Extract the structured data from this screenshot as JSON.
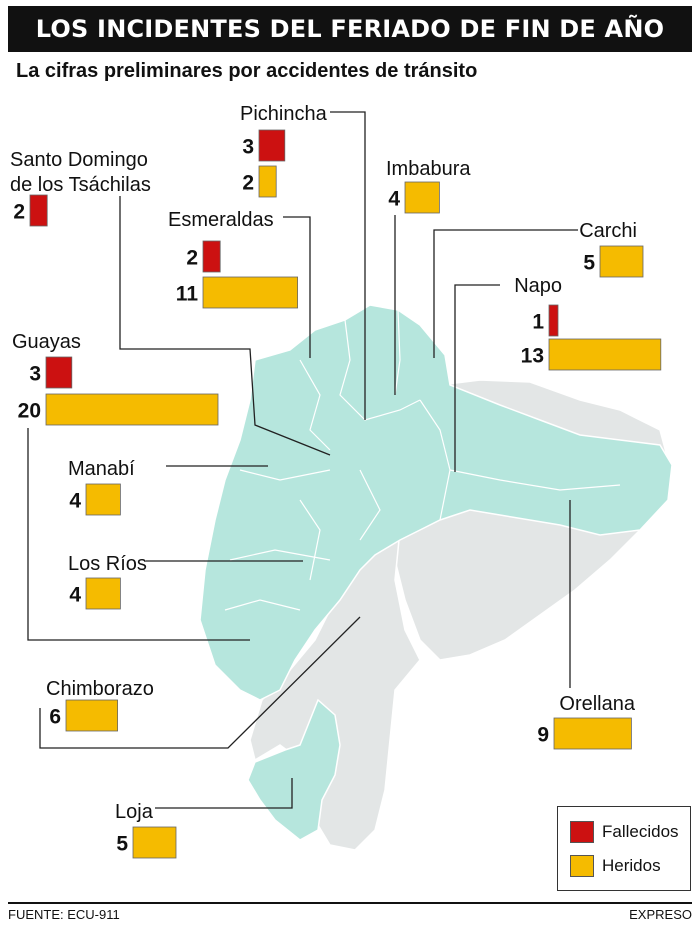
{
  "title": "LOS INCIDENTES DEL FERIADO DE FIN DE AÑO",
  "subtitle": "La cifras preliminares por accidentes de tránsito",
  "source": "FUENTE: ECU-911",
  "credit": "EXPRESO",
  "colors": {
    "fallecidos": "#cc1111",
    "heridos": "#f5bb00",
    "map_highlight": "#b6e6dd",
    "map_other": "#e3e6e6",
    "map_border": "#ffffff"
  },
  "legend": [
    {
      "label": "Fallecidos",
      "color": "#cc1111"
    },
    {
      "label": "Heridos",
      "color": "#f5bb00"
    }
  ],
  "chart_data": {
    "type": "bar",
    "title": "LOS INCIDENTES DEL FERIADO DE FIN DE AÑO",
    "subtitle": "La cifras preliminares por accidentes de tránsito",
    "series_names": [
      "Fallecidos",
      "Heridos"
    ],
    "provinces": [
      {
        "name": "Pichincha",
        "fallecidos": 3,
        "heridos": 2
      },
      {
        "name": "Santo Domingo de los Tsáchilas",
        "name_lines": [
          "Santo Domingo",
          "de los Tsáchilas"
        ],
        "fallecidos": 2,
        "heridos": null
      },
      {
        "name": "Imbabura",
        "fallecidos": null,
        "heridos": 4
      },
      {
        "name": "Esmeraldas",
        "fallecidos": 2,
        "heridos": 11
      },
      {
        "name": "Carchi",
        "fallecidos": null,
        "heridos": 5
      },
      {
        "name": "Napo",
        "fallecidos": 1,
        "heridos": 13
      },
      {
        "name": "Guayas",
        "fallecidos": 3,
        "heridos": 20
      },
      {
        "name": "Manabí",
        "fallecidos": null,
        "heridos": 4
      },
      {
        "name": "Los Ríos",
        "fallecidos": null,
        "heridos": 4
      },
      {
        "name": "Chimborazo",
        "fallecidos": null,
        "heridos": 6
      },
      {
        "name": "Orellana",
        "fallecidos": null,
        "heridos": 9
      },
      {
        "name": "Loja",
        "fallecidos": null,
        "heridos": 5
      }
    ]
  }
}
